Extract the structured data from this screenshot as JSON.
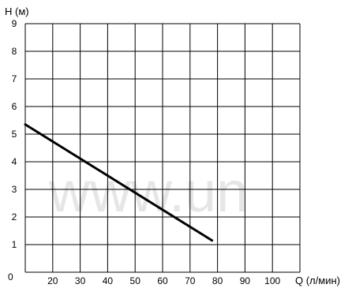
{
  "chart_data": {
    "type": "line",
    "title": "",
    "ylabel": "H (м)",
    "xlabel": "Q (л/мин)",
    "x_ticks": [
      "20",
      "30",
      "40",
      "50",
      "60",
      "70",
      "80",
      "90",
      "100"
    ],
    "y_ticks": [
      "1",
      "2",
      "3",
      "4",
      "5",
      "6",
      "7",
      "8",
      "9"
    ],
    "y_origin_label": "0",
    "xlim": [
      10,
      110
    ],
    "ylim": [
      0,
      9
    ],
    "grid": true,
    "series": [
      {
        "x": [
          10,
          78
        ],
        "y": [
          5.35,
          1.15
        ],
        "color": "#000000"
      }
    ],
    "watermark": "www.un"
  }
}
